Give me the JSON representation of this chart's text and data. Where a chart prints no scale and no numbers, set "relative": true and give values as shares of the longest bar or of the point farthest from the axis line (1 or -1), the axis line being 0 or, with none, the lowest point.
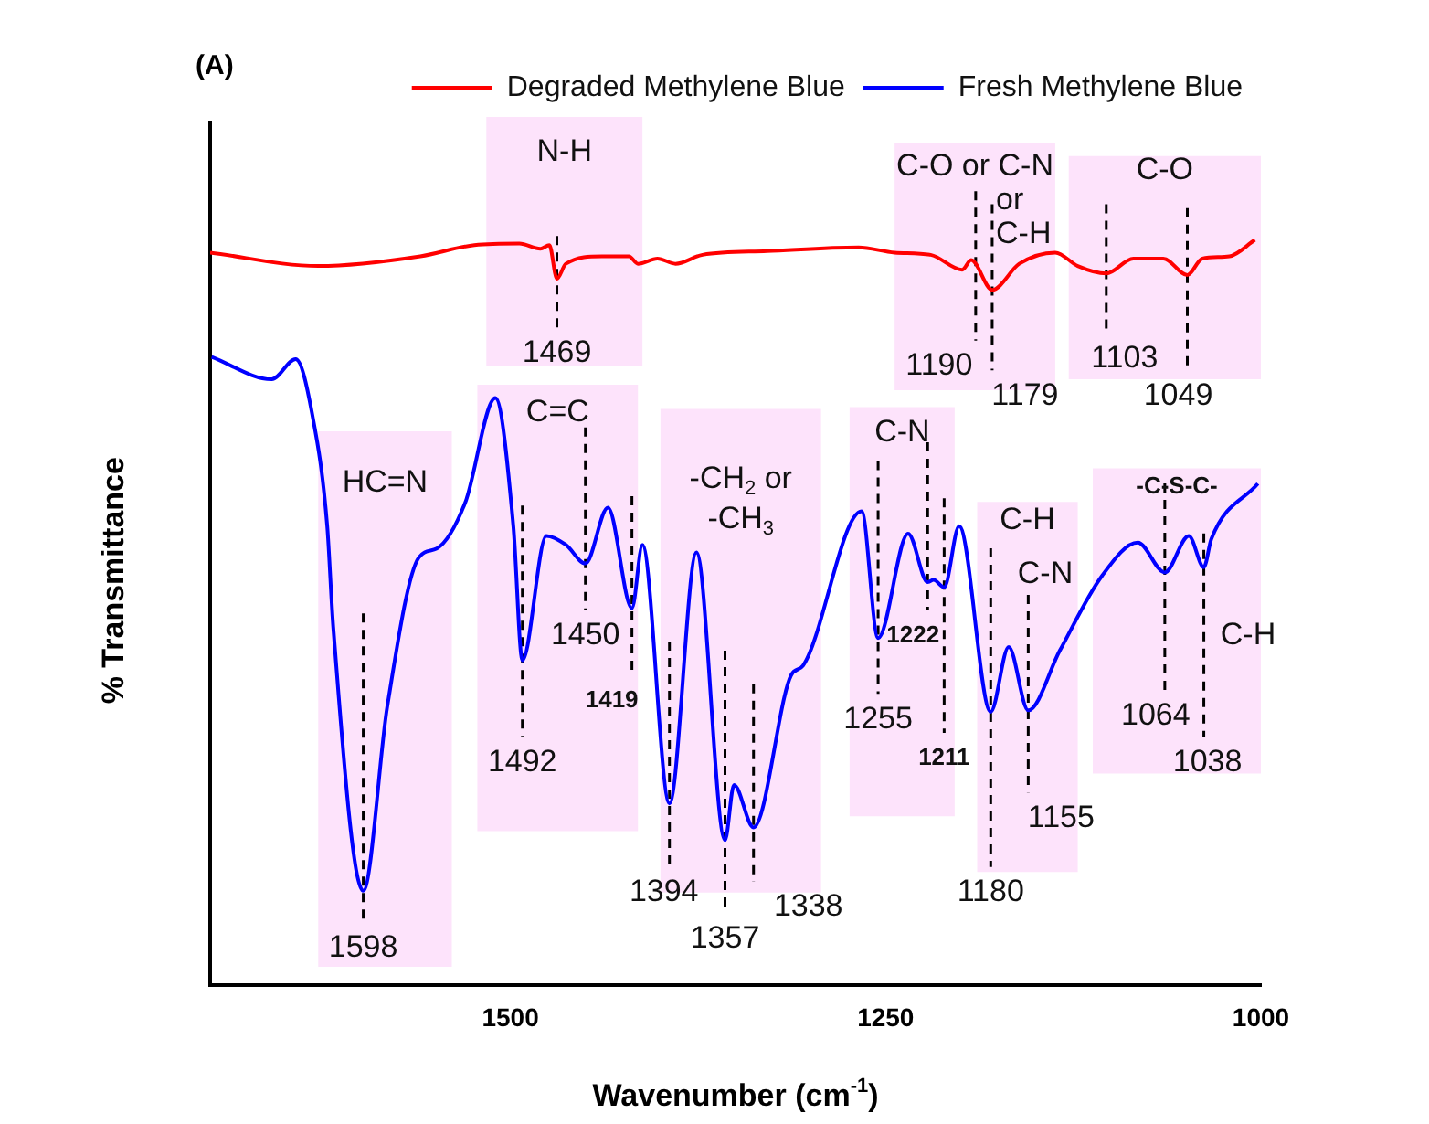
{
  "chart_data": {
    "type": "line",
    "title": "(A)",
    "xlabel": "Wavenumber (cm$^{-1}$)",
    "ylabel": "% Transmittance",
    "relative": true,
    "marker": "none",
    "legend": "top right",
    "xlim": [
      1700,
      1000
    ],
    "xticks": [
      1500,
      1250,
      1000
    ],
    "series": [
      {
        "name": "Degraded Methylene Blue",
        "color": "#ff0000",
        "x": [
          1700,
          1628,
          1560,
          1524,
          1494,
          1480,
          1474,
          1469,
          1463,
          1439,
          1421,
          1415,
          1402,
          1390,
          1372,
          1329,
          1268,
          1244,
          1220,
          1199,
          1193,
          1179,
          1161,
          1137,
          1122,
          1103,
          1085,
          1065,
          1049,
          1039,
          1021,
          1004
        ],
        "values": [
          0.983,
          0.965,
          0.978,
          0.993,
          0.995,
          0.988,
          0.993,
          0.948,
          0.968,
          0.978,
          0.978,
          0.968,
          0.975,
          0.968,
          0.98,
          0.985,
          0.99,
          0.983,
          0.98,
          0.96,
          0.973,
          0.933,
          0.968,
          0.983,
          0.965,
          0.955,
          0.975,
          0.975,
          0.953,
          0.975,
          0.978,
          1
        ]
      },
      {
        "name": "Fresh Methylene Blue",
        "color": "#0000ff",
        "x": [
          1699,
          1659,
          1643,
          1632,
          1622,
          1618,
          1598,
          1582,
          1561,
          1549,
          1530,
          1510,
          1498,
          1492,
          1476,
          1463,
          1450,
          1435,
          1419,
          1412,
          1394,
          1376,
          1357,
          1351,
          1338,
          1313,
          1305,
          1266,
          1255,
          1235,
          1222,
          1218,
          1211,
          1201,
          1180,
          1168,
          1155,
          1134,
          1106,
          1082,
          1064,
          1048,
          1038,
          1033,
          1002
        ],
        "values": [
          0.843,
          0.813,
          0.84,
          0.766,
          0.616,
          0.481,
          0.127,
          0.374,
          0.574,
          0.586,
          0.648,
          0.788,
          0.616,
          0.436,
          0.603,
          0.591,
          0.566,
          0.641,
          0.506,
          0.591,
          0.244,
          0.581,
          0.195,
          0.269,
          0.212,
          0.416,
          0.429,
          0.636,
          0.466,
          0.606,
          0.541,
          0.544,
          0.534,
          0.616,
          0.367,
          0.454,
          0.369,
          0.449,
          0.549,
          0.594,
          0.554,
          0.603,
          0.561,
          0.599,
          0.673
        ]
      }
    ],
    "bands": [
      {
        "axis": "x",
        "from": 1516,
        "to": 1412,
        "label": "N-H",
        "color": "#fde3fb"
      },
      {
        "axis": "x",
        "from": 1244,
        "to": 1137,
        "label": "C-O or C-N or C-H",
        "color": "#fde3fb"
      },
      {
        "axis": "x",
        "from": 1128,
        "to": 1000,
        "label": "C-O",
        "color": "#fde3fb"
      },
      {
        "axis": "x",
        "from": 1628,
        "to": 1539,
        "label": "HC=N",
        "color": "#fde3fb"
      },
      {
        "axis": "x",
        "from": 1522,
        "to": 1415,
        "label": "C=C",
        "color": "#fde3fb"
      },
      {
        "axis": "x",
        "from": 1400,
        "to": 1293,
        "label": "-CH$_{2}$ or -CH$_{3}$",
        "color": "#fde3fb"
      },
      {
        "axis": "x",
        "from": 1274,
        "to": 1204,
        "label": "C-N",
        "color": "#fde3fb"
      },
      {
        "axis": "x",
        "from": 1189,
        "to": 1122,
        "label": "C-H",
        "color": "#fde3fb"
      },
      {
        "axis": "x",
        "from": 1112,
        "to": 1000,
        "label": "-C-S-C-",
        "color": "#fde3fb"
      }
    ],
    "ref_lines": [
      {
        "axis": "x",
        "value": 1469,
        "label": "1469",
        "color": "#000000",
        "line_style": "dashed"
      },
      {
        "axis": "x",
        "value": 1190,
        "label": "1190",
        "color": "#000000",
        "line_style": "dashed"
      },
      {
        "axis": "x",
        "value": 1179,
        "label": "1179",
        "color": "#000000",
        "line_style": "dashed"
      },
      {
        "axis": "x",
        "value": 1103,
        "label": "1103",
        "color": "#000000",
        "line_style": "dashed"
      },
      {
        "axis": "x",
        "value": 1049,
        "label": "1049",
        "color": "#000000",
        "line_style": "dashed"
      },
      {
        "axis": "x",
        "value": 1598,
        "label": "1598",
        "color": "#000000",
        "line_style": "dashed"
      },
      {
        "axis": "x",
        "value": 1492,
        "label": "1492",
        "color": "#000000",
        "line_style": "dashed"
      },
      {
        "axis": "x",
        "value": 1450,
        "label": "1450",
        "color": "#000000",
        "line_style": "dashed"
      },
      {
        "axis": "x",
        "value": 1419,
        "label": "1419",
        "color": "#000000",
        "line_style": "dashed"
      },
      {
        "axis": "x",
        "value": 1394,
        "label": "1394",
        "color": "#000000",
        "line_style": "dashed"
      },
      {
        "axis": "x",
        "value": 1357,
        "label": "1357",
        "color": "#000000",
        "line_style": "dashed"
      },
      {
        "axis": "x",
        "value": 1338,
        "label": "1338",
        "color": "#000000",
        "line_style": "dashed"
      },
      {
        "axis": "x",
        "value": 1255,
        "label": "1255",
        "color": "#000000",
        "line_style": "dashed"
      },
      {
        "axis": "x",
        "value": 1222,
        "label": "1222",
        "color": "#000000",
        "line_style": "dashed"
      },
      {
        "axis": "x",
        "value": 1211,
        "label": "1211",
        "color": "#000000",
        "line_style": "dashed"
      },
      {
        "axis": "x",
        "value": 1180,
        "label": "1180",
        "color": "#000000",
        "line_style": "dashed"
      },
      {
        "axis": "x",
        "value": 1155,
        "label": "1155",
        "color": "#000000",
        "line_style": "dashed"
      },
      {
        "axis": "x",
        "value": 1064,
        "label": "1064",
        "color": "#000000",
        "line_style": "dashed"
      },
      {
        "axis": "x",
        "value": 1038,
        "label": "1038",
        "color": "#000000",
        "line_style": "dashed"
      }
    ],
    "annotations": [
      "C-N",
      "C-H"
    ]
  }
}
